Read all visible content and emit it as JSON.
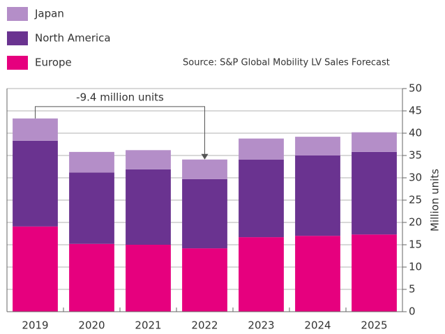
{
  "chart_data": {
    "type": "stacked_bar",
    "source": "Source: S&P Global Mobility LV Sales Forecast",
    "y_axis_label": "Million units",
    "annotation": "-9.4 million units",
    "categories": [
      "2019",
      "2020",
      "2021",
      "2022",
      "2023",
      "2024",
      "2025"
    ],
    "series": [
      {
        "name": "Europe",
        "color": "#e6007e",
        "values": [
          19.1,
          15.2,
          15.0,
          14.2,
          16.7,
          17.0,
          17.3
        ]
      },
      {
        "name": "North America",
        "color": "#6a3390",
        "values": [
          19.2,
          16.0,
          16.9,
          15.5,
          17.4,
          18.0,
          18.5
        ]
      },
      {
        "name": "Japan",
        "color": "#b48ec8",
        "values": [
          5.0,
          4.6,
          4.3,
          4.4,
          4.7,
          4.2,
          4.4
        ]
      }
    ],
    "ylim": [
      0,
      50
    ],
    "yticks": [
      0,
      5,
      10,
      15,
      20,
      25,
      30,
      35,
      40,
      45,
      50
    ],
    "y_axis_side": "right",
    "grid": true
  }
}
